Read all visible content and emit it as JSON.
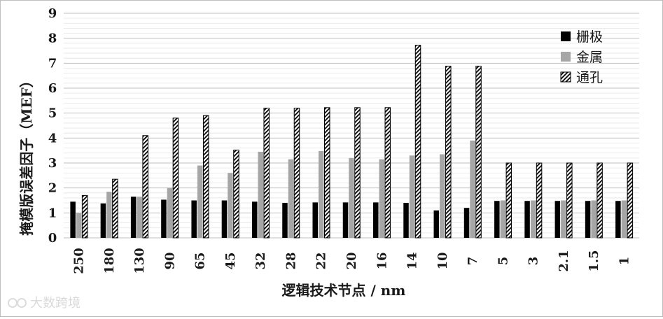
{
  "chart_data": {
    "type": "bar",
    "xlabel": "逻辑技术节点 / nm",
    "ylabel": "掩模版误差因子（MEF）",
    "ylim": [
      0,
      9
    ],
    "yticks": [
      "0",
      "1",
      "2",
      "3",
      "4",
      "5",
      "6",
      "7",
      "8",
      "9"
    ],
    "grid": true,
    "legend_position": "top-right",
    "categories": [
      "250",
      "180",
      "130",
      "90",
      "65",
      "45",
      "32",
      "28",
      "22",
      "20",
      "16",
      "14",
      "10",
      "7",
      "5",
      "3",
      "2.1",
      "1.5",
      "1"
    ],
    "series": [
      {
        "name": "栅极",
        "color": "#000000",
        "pattern": "solid",
        "values": [
          1.45,
          1.38,
          1.65,
          1.53,
          1.5,
          1.5,
          1.45,
          1.4,
          1.42,
          1.42,
          1.42,
          1.4,
          1.1,
          1.2,
          1.48,
          1.48,
          1.48,
          1.48,
          1.48
        ]
      },
      {
        "name": "金属",
        "color": "#a6a6a6",
        "pattern": "solid",
        "values": [
          1.0,
          1.85,
          1.65,
          2.0,
          2.9,
          2.6,
          3.45,
          3.15,
          3.48,
          3.2,
          3.15,
          3.3,
          3.35,
          3.9,
          1.5,
          1.5,
          1.5,
          1.5,
          1.5
        ]
      },
      {
        "name": "通孔",
        "color": "#000000",
        "pattern": "hatch",
        "values": [
          1.7,
          2.35,
          4.1,
          4.8,
          4.9,
          3.52,
          5.2,
          5.2,
          5.22,
          5.22,
          5.22,
          7.72,
          6.88,
          6.88,
          3.0,
          3.0,
          3.0,
          3.0,
          3.0
        ]
      }
    ]
  },
  "watermark": {
    "text": "大数跨境",
    "icon": "infinity-logo-icon"
  }
}
